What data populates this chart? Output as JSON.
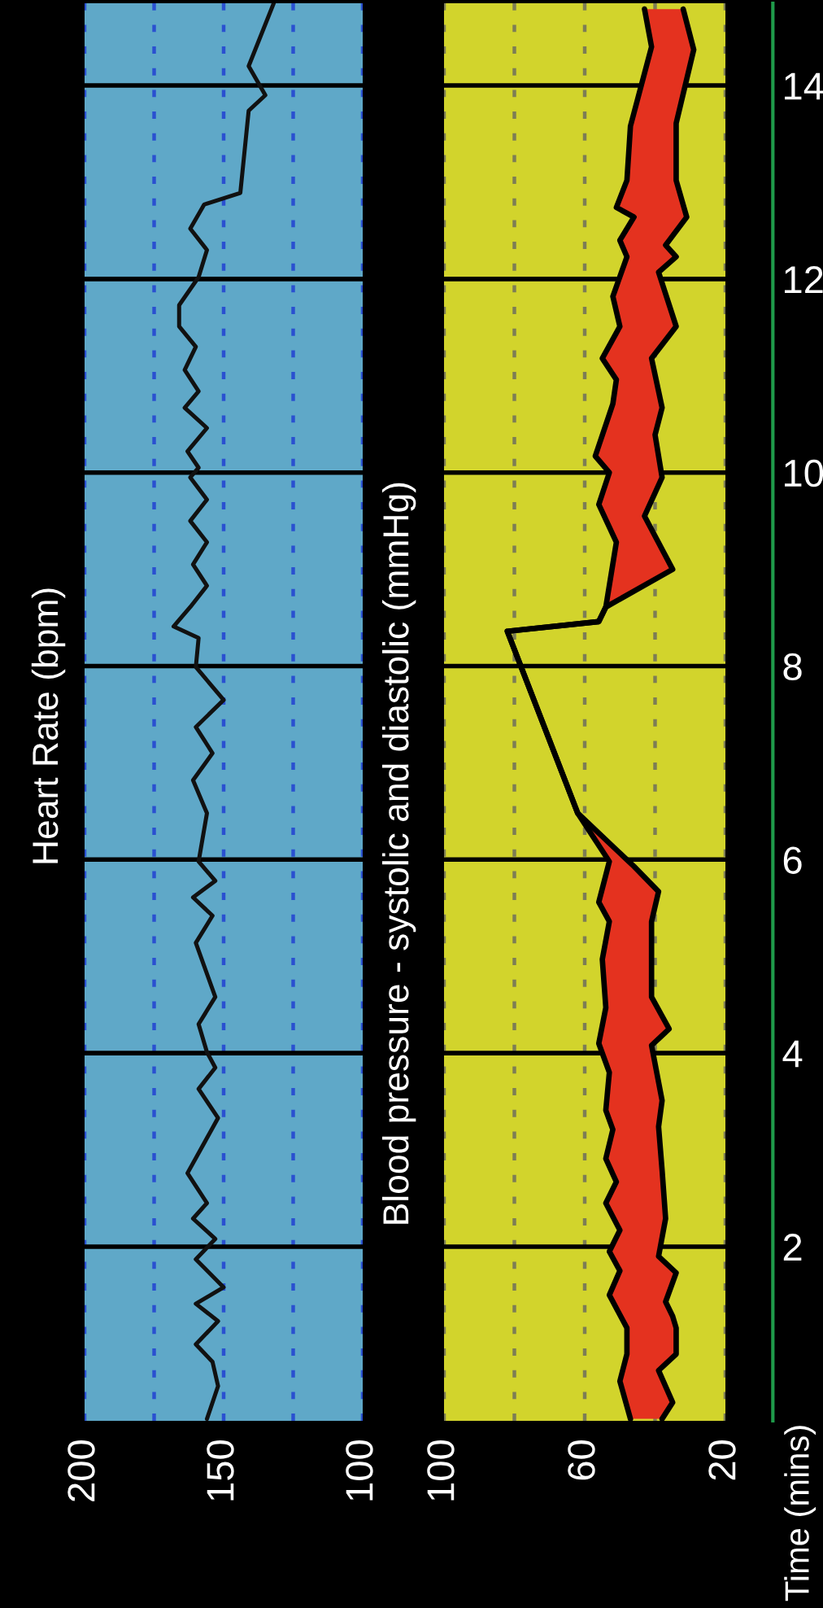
{
  "chart_data": [
    {
      "type": "line",
      "title": "Heart Rate (bpm)",
      "ylim": [
        0.2,
        14.85
      ],
      "yticks": [
        2,
        4,
        6,
        8,
        10,
        12,
        14
      ],
      "xlim": [
        200,
        100
      ],
      "xticks": [
        200,
        {
          "value": 175,
          "label": null
        },
        150,
        {
          "value": 125,
          "label": null
        },
        100
      ],
      "grid": true,
      "tick_labels": "x",
      "series": [
        {
          "color": "#111111",
          "values": [
            0.22,
            0.56,
            0.81,
            0.99,
            1.23,
            1.41,
            1.58,
            1.87,
            2.08,
            2.29,
            2.45,
            2.76,
            3.33,
            3.63,
            3.85,
            4.01,
            4.3,
            4.58,
            5.14,
            5.42,
            5.61,
            5.78,
            5.98,
            6.48,
            6.82,
            7.1,
            7.37,
            7.65,
            7.99,
            8.29,
            8.41,
            8.61,
            8.83,
            9.05,
            9.28,
            9.5,
            9.72,
            9.95,
            10.05,
            10.22,
            10.46,
            10.67,
            10.84,
            11.06,
            11.3,
            11.51,
            11.73,
            12.02,
            12.3,
            12.52,
            12.77,
            12.89,
            13.74,
            13.9,
            14.2,
            14.85
          ],
          "x": [
            156,
            152,
            154,
            160,
            152,
            160,
            150,
            160,
            153,
            161,
            156,
            163,
            152,
            159,
            153,
            156,
            159,
            153,
            160,
            154,
            161,
            153,
            159,
            156,
            161,
            154,
            160,
            150,
            160,
            159,
            168,
            162,
            156,
            161,
            156,
            162,
            156,
            162,
            159,
            163,
            156,
            164,
            159,
            164,
            160,
            166,
            166,
            159,
            156,
            162,
            157,
            144,
            141,
            135,
            141,
            132
          ]
        }
      ]
    },
    {
      "type": "line",
      "title": "Blood pressure - systolic and diastolic (mmHg)",
      "ylabel": "Time (mins)",
      "ylim": [
        0.2,
        14.85
      ],
      "yticks": [
        2,
        4,
        6,
        8,
        10,
        12,
        14
      ],
      "xlim": [
        100,
        20
      ],
      "xticks": [
        100,
        {
          "value": 80,
          "label": null
        },
        60,
        {
          "value": 40,
          "label": null
        },
        20
      ],
      "grid": true,
      "series": [
        {
          "type": "line",
          "color": "#000000",
          "values": [
            0.22,
            0.61,
            0.89,
            1.16,
            1.5,
            1.75,
            1.95,
            2.17,
            2.45,
            2.67,
            2.91,
            3.21,
            3.41,
            3.8,
            4.1,
            4.47,
            4.97,
            5.36,
            5.56,
            5.98,
            6.48,
            8.36,
            8.46,
            8.61,
            9.28,
            9.67,
            10.0,
            10.17,
            10.71,
            10.96,
            11.18,
            11.51,
            11.82,
            12.23,
            12.4,
            12.64,
            12.74,
            13.02,
            13.58,
            14.4,
            14.79
          ],
          "x": [
            47,
            50,
            48,
            48,
            53,
            50,
            53,
            50,
            54,
            51,
            54,
            52,
            54,
            53,
            56,
            54,
            55,
            53,
            56,
            53,
            62,
            82,
            56,
            54,
            51,
            56,
            53,
            57,
            52,
            51,
            55,
            50,
            52,
            48,
            50,
            46,
            51,
            48,
            47,
            41,
            43
          ]
        },
        {
          "type": "line",
          "color": "#000000",
          "values": [
            0.22,
            0.39,
            0.72,
            0.89,
            1.16,
            1.28,
            1.43,
            1.73,
            1.9,
            2.29,
            2.79,
            3.24,
            3.51,
            4.08,
            4.25,
            4.58,
            5.36,
            5.67,
            5.93,
            6.48,
            8.36,
            8.46,
            8.61,
            9.0,
            9.55,
            9.95,
            10.39,
            10.67,
            11.18,
            11.51,
            12.07,
            12.23,
            12.35,
            12.64,
            13.02,
            13.61,
            14.37,
            14.79
          ],
          "x": [
            38,
            35,
            39,
            34,
            34,
            35,
            37,
            34,
            39,
            37,
            38,
            39,
            38,
            41,
            36,
            41,
            41,
            39,
            46,
            62,
            82,
            56,
            54,
            35,
            43,
            38,
            40,
            38,
            41,
            34,
            39,
            34,
            37,
            31,
            34,
            34,
            29,
            32
          ]
        }
      ]
    }
  ]
}
